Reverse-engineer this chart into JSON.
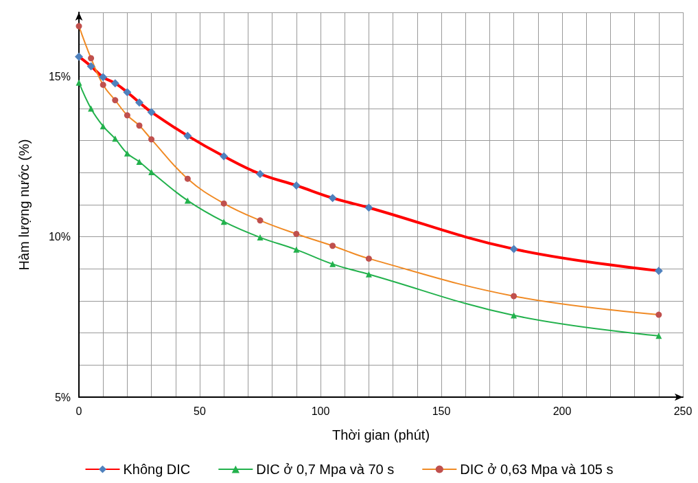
{
  "chart_data": {
    "type": "line",
    "xlabel": "Thời gian (phút)",
    "ylabel": "Hàm lượng nước (%)",
    "xlim": [
      0,
      250
    ],
    "ylim": [
      5,
      17
    ],
    "xticks": [
      0,
      {
        "value": 10,
        "label": null
      },
      {
        "value": 20,
        "label": null
      },
      {
        "value": 30,
        "label": null
      },
      {
        "value": 40,
        "label": null
      },
      50,
      {
        "value": 60,
        "label": null
      },
      {
        "value": 70,
        "label": null
      },
      {
        "value": 80,
        "label": null
      },
      {
        "value": 90,
        "label": null
      },
      100,
      {
        "value": 110,
        "label": null
      },
      {
        "value": 120,
        "label": null
      },
      {
        "value": 130,
        "label": null
      },
      {
        "value": 140,
        "label": null
      },
      150,
      {
        "value": 160,
        "label": null
      },
      {
        "value": 170,
        "label": null
      },
      {
        "value": 180,
        "label": null
      },
      {
        "value": 190,
        "label": null
      },
      200,
      {
        "value": 210,
        "label": null
      },
      {
        "value": 220,
        "label": null
      },
      {
        "value": 230,
        "label": null
      },
      {
        "value": 240,
        "label": null
      },
      250
    ],
    "yticks": [
      {
        "value": 5,
        "label": "5%"
      },
      {
        "value": 6,
        "label": null
      },
      {
        "value": 7,
        "label": null
      },
      {
        "value": 8,
        "label": null
      },
      {
        "value": 9,
        "label": null
      },
      {
        "value": 10,
        "label": "10%"
      },
      {
        "value": 11,
        "label": null
      },
      {
        "value": 12,
        "label": null
      },
      {
        "value": 13,
        "label": null
      },
      {
        "value": 14,
        "label": null
      },
      {
        "value": 15,
        "label": "15%"
      },
      {
        "value": 16,
        "label": null
      },
      {
        "value": 17,
        "label": null
      }
    ],
    "x": [
      0,
      5,
      10,
      15,
      20,
      25,
      30,
      45,
      60,
      75,
      90,
      105,
      120,
      180,
      240
    ],
    "grid": true,
    "legend": "bottom",
    "line_style": "solid",
    "series": [
      {
        "name": "Không DIC",
        "color": "#ff0000",
        "marker": "diamond",
        "colors": [
          "#4f81bd",
          "#4f81bd",
          "#4f81bd",
          "#4f81bd",
          "#4f81bd",
          "#4f81bd",
          "#4f81bd",
          "#4f81bd",
          "#4f81bd",
          "#4f81bd",
          "#4f81bd",
          "#4f81bd",
          "#4f81bd",
          "#4f81bd",
          "#4f81bd"
        ],
        "values": [
          15.62,
          15.32,
          14.98,
          14.79,
          14.51,
          14.19,
          13.89,
          13.15,
          12.51,
          11.96,
          11.6,
          11.21,
          10.91,
          9.62,
          8.94
        ]
      },
      {
        "name": "DIC ở 0,7 Mpa và 70 s",
        "color": "#22b14c",
        "marker": "triangle",
        "values": [
          14.81,
          14.0,
          13.45,
          13.06,
          12.6,
          12.34,
          12.02,
          11.13,
          10.47,
          9.98,
          9.6,
          9.15,
          8.83,
          7.55,
          6.91
        ]
      },
      {
        "name": "DIC ở 0,63 Mpa và 105 s",
        "color": "#f08a24",
        "marker": "circle",
        "colors": [
          "#c0504d",
          "#c0504d",
          "#c0504d",
          "#c0504d",
          "#c0504d",
          "#c0504d",
          "#c0504d",
          "#c0504d",
          "#c0504d",
          "#c0504d",
          "#c0504d",
          "#c0504d",
          "#c0504d",
          "#c0504d",
          "#c0504d"
        ],
        "values": [
          16.57,
          15.57,
          14.74,
          14.26,
          13.79,
          13.47,
          13.04,
          11.81,
          11.04,
          10.51,
          10.09,
          9.72,
          9.32,
          8.15,
          7.57
        ]
      }
    ]
  }
}
